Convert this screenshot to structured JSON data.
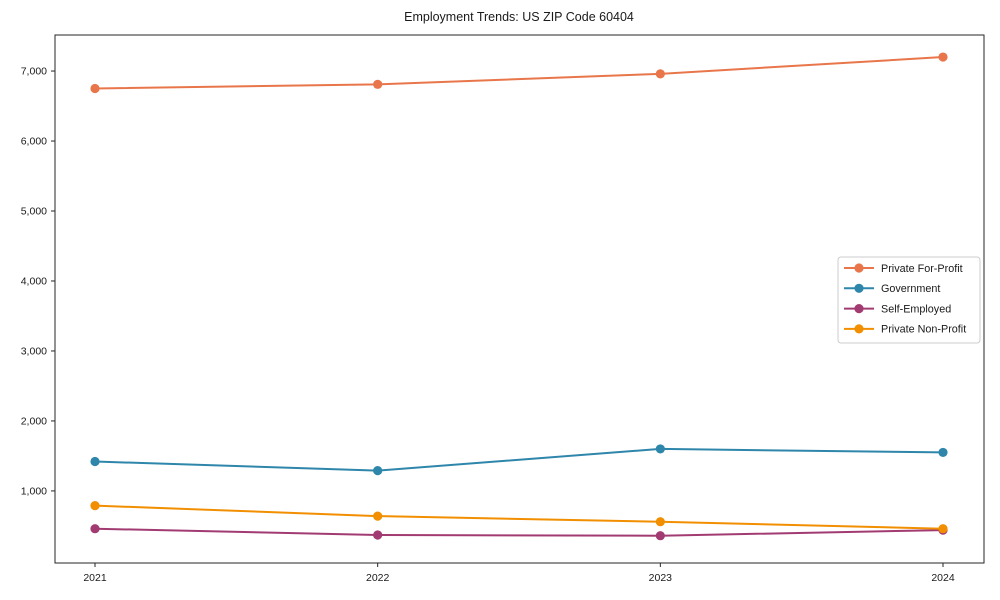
{
  "page": {
    "title": "Employment Trends: US ZIP Code 60404"
  },
  "chart_data": {
    "type": "line",
    "title": "Employment Trends: US ZIP Code 60404",
    "x_tick_labels": [
      "2021",
      "2022",
      "2023",
      "2024"
    ],
    "series": [
      {
        "name": "Private For-Profit",
        "color": "#E8764A",
        "values": [
          6750,
          6810,
          6960,
          7200
        ]
      },
      {
        "name": "Government",
        "color": "#2E86AB",
        "values": [
          1420,
          1290,
          1600,
          1550
        ]
      },
      {
        "name": "Self-Employed",
        "color": "#A23B72",
        "values": [
          460,
          370,
          360,
          440
        ]
      },
      {
        "name": "Private Non-Profit",
        "color": "#F18F01",
        "values": [
          790,
          640,
          560,
          460
        ]
      }
    ],
    "ylim": [
      -30,
      7515
    ],
    "y_ticks": [
      1000,
      2000,
      3000,
      4000,
      5000,
      6000,
      7000
    ],
    "y_tick_labels": [
      "1,000",
      "2,000",
      "3,000",
      "4,000",
      "5,000",
      "6,000",
      "7,000"
    ],
    "xlabel": "",
    "ylabel": "",
    "grid": false,
    "legend": {
      "position": "right-middle",
      "background": "#ffffff",
      "border_color": "#cccccc",
      "entries": [
        "Private For-Profit",
        "Government",
        "Self-Employed",
        "Private Non-Profit"
      ]
    },
    "marker": "circle",
    "axis_color": "#262626",
    "text_color": "#1a1a1a"
  }
}
